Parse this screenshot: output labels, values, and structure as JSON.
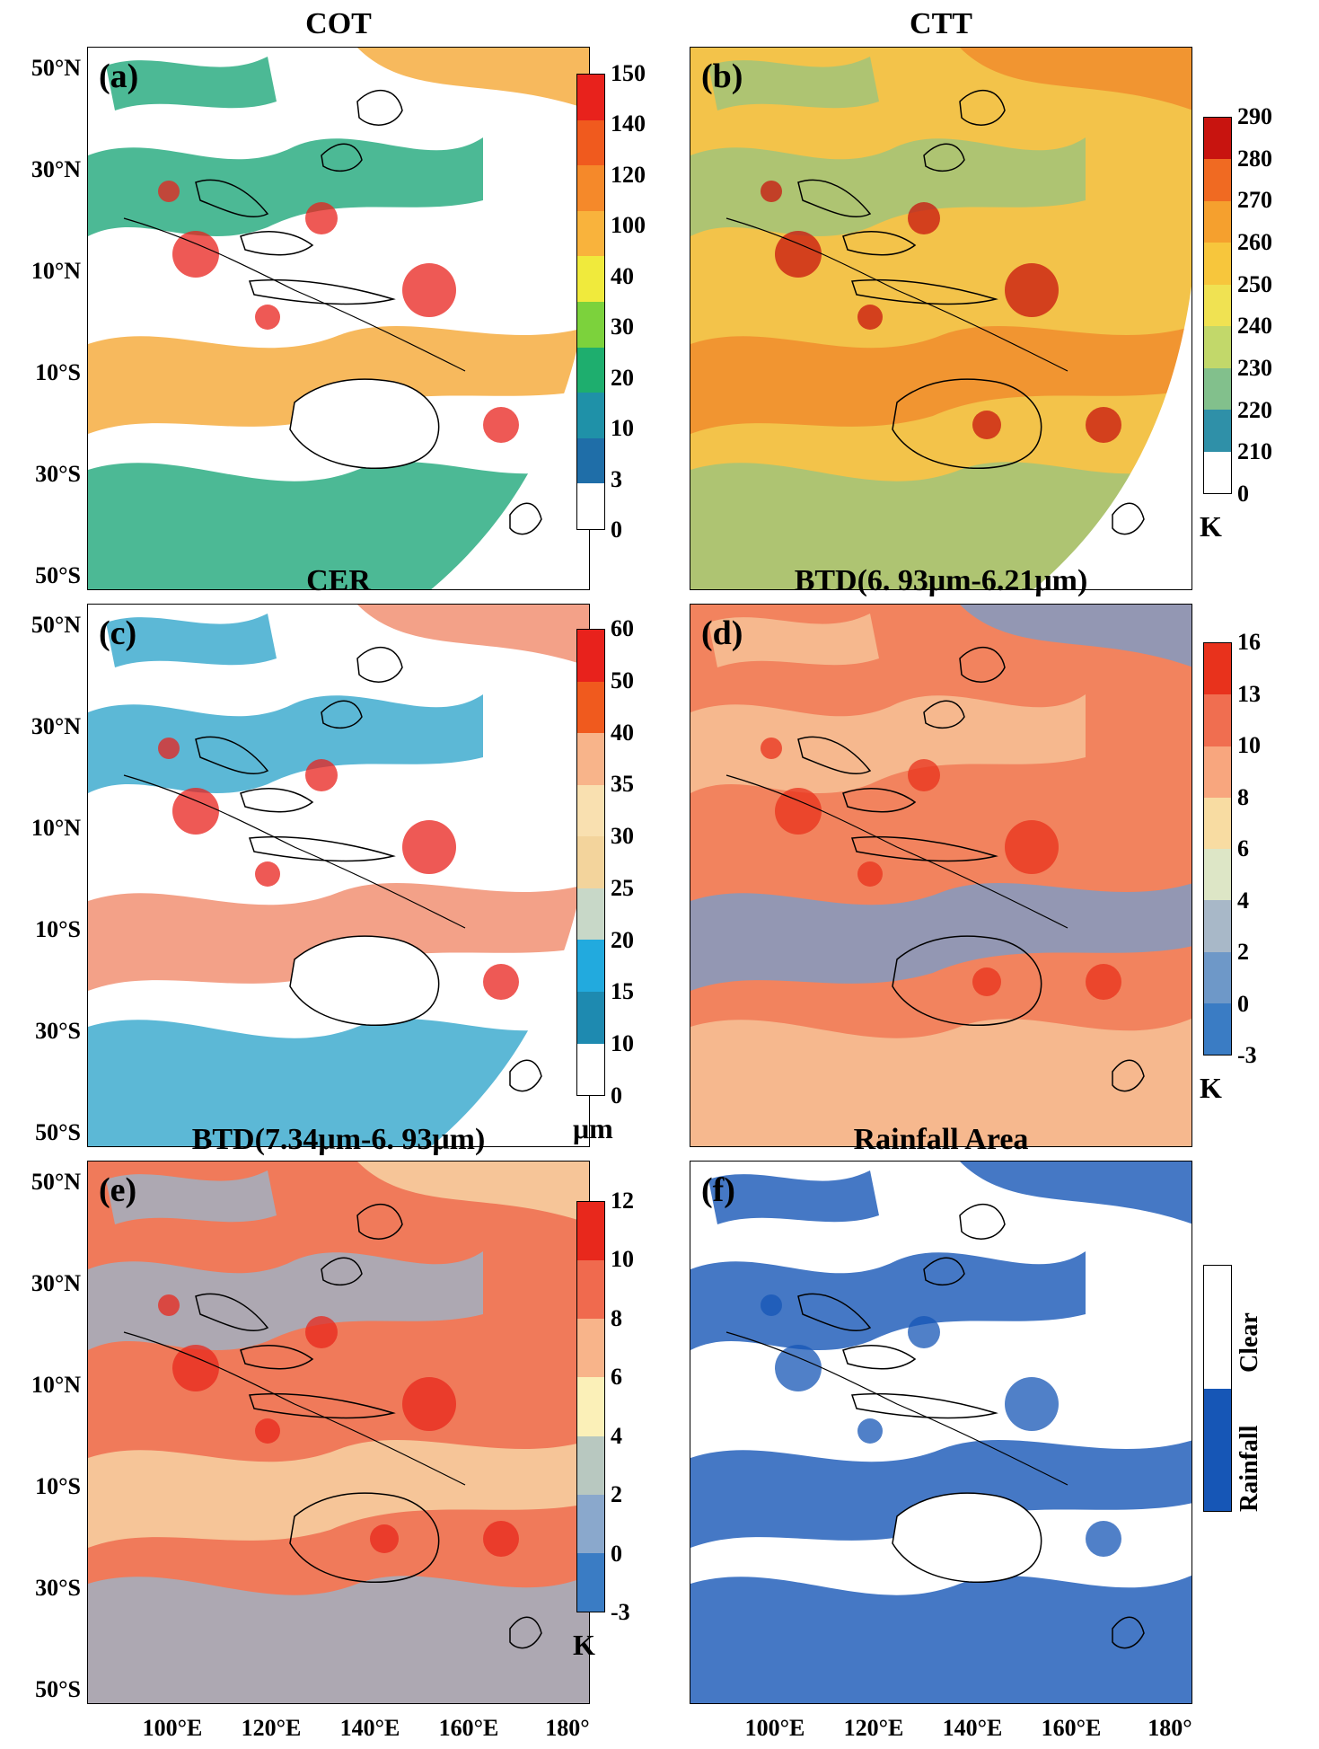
{
  "axes": {
    "y_ticks": [
      "50°N",
      "30°N",
      "10°N",
      "10°S",
      "30°S",
      "50°S"
    ],
    "x_ticks": [
      "100°E",
      "120°E",
      "140°E",
      "160°E",
      "180°"
    ]
  },
  "panels": [
    {
      "id": "a",
      "title": "COT",
      "label": "(a)",
      "unit": "",
      "colorbar": {
        "ticks": [
          "150",
          "140",
          "120",
          "100",
          "40",
          "30",
          "20",
          "10",
          "3",
          "0"
        ],
        "colors": [
          "#e8221c",
          "#f05a1e",
          "#f5892a",
          "#f9b33c",
          "#f0ea3c",
          "#7cd23c",
          "#1eae6e",
          "#1f91a8",
          "#1f6ea8",
          "#ffffff"
        ]
      },
      "style": {
        "base": "#ffffff",
        "swirl": "#1fa87a",
        "accent": "#f5a834",
        "hot": "#e8221c"
      }
    },
    {
      "id": "b",
      "title": "CTT",
      "label": "(b)",
      "unit": "K",
      "colorbar": {
        "ticks": [
          "290",
          "280",
          "270",
          "260",
          "250",
          "240",
          "230",
          "220",
          "210",
          "0"
        ],
        "colors": [
          "#c8140f",
          "#f06a22",
          "#f5a02e",
          "#f7c63c",
          "#f0e252",
          "#c2d86a",
          "#82c08c",
          "#2f90a8",
          "#ffffff"
        ]
      },
      "style": {
        "base": "#f3c34a",
        "swirl": "#9cc47c",
        "accent": "#f08a2a",
        "hot": "#c8140f"
      }
    },
    {
      "id": "c",
      "title": "CER",
      "label": "(c)",
      "unit": "μm",
      "colorbar": {
        "ticks": [
          "60",
          "50",
          "40",
          "35",
          "30",
          "25",
          "20",
          "15",
          "10",
          "0"
        ],
        "colors": [
          "#e8221c",
          "#f05a1e",
          "#f8b48a",
          "#f9e0b0",
          "#f3d49c",
          "#c8d8c8",
          "#22aade",
          "#1e8ab0",
          "#ffffff"
        ]
      },
      "style": {
        "base": "#ffffff",
        "swirl": "#33a6cc",
        "accent": "#f08a6a",
        "hot": "#e8221c"
      }
    },
    {
      "id": "d",
      "title": "BTD(6. 93μm-6.21μm)",
      "label": "(d)",
      "unit": "K",
      "colorbar": {
        "ticks": [
          "16",
          "13",
          "10",
          "8",
          "6",
          "4",
          "2",
          "0",
          "-3"
        ],
        "colors": [
          "#e8321c",
          "#f06e50",
          "#f8a67e",
          "#f8dca2",
          "#dde6c6",
          "#a8b8c8",
          "#6e98c8",
          "#3a7cc4"
        ]
      },
      "style": {
        "base": "#f2835e",
        "swirl": "#f6c69a",
        "accent": "#7a9cc8",
        "hot": "#e8321c"
      }
    },
    {
      "id": "e",
      "title": "BTD(7.34μm-6. 93μm)",
      "label": "(e)",
      "unit": "K",
      "colorbar": {
        "ticks": [
          "12",
          "10",
          "8",
          "6",
          "4",
          "2",
          "0",
          "-3"
        ],
        "colors": [
          "#e8281c",
          "#f06a4e",
          "#f8b48a",
          "#fbf0b8",
          "#b8c8c0",
          "#8aa8cc",
          "#3a7cc4"
        ]
      },
      "style": {
        "base": "#f07a5a",
        "swirl": "#9cb4c8",
        "accent": "#f8d8a8",
        "hot": "#e8281c"
      }
    },
    {
      "id": "f",
      "title": "Rainfall Area",
      "label": "(f)",
      "unit": "",
      "legend": {
        "top_label": "Clear",
        "bottom_label": "Rainfall"
      },
      "colorbar": {
        "ticks": [],
        "colors": [
          "#ffffff",
          "#1656b6"
        ]
      },
      "style": {
        "base": "#ffffff",
        "swirl": "#1656b6",
        "accent": "#1656b6",
        "hot": "#1656b6"
      }
    }
  ]
}
